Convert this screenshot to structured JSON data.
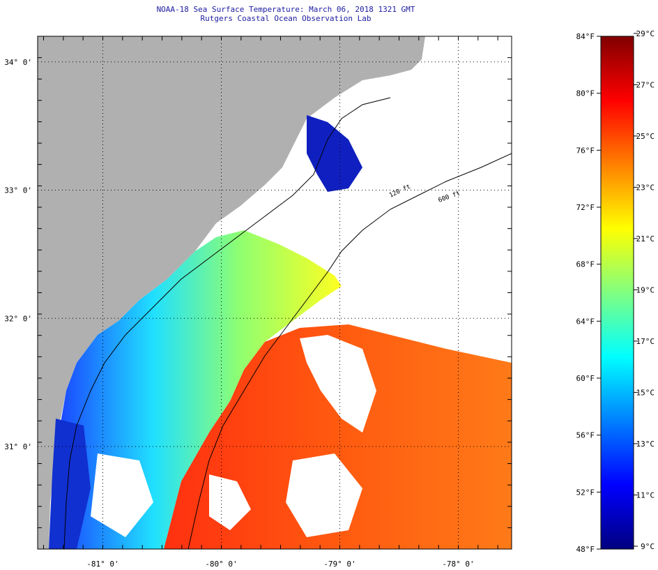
{
  "title": {
    "line1": "NOAA-18 Sea Surface Temperature:  March 06, 2018 1321 GMT",
    "line2": "Rutgers Coastal Ocean Observation Lab"
  },
  "map": {
    "lon_range": [
      -81.55,
      -77.55
    ],
    "lat_range": [
      30.2,
      34.2
    ],
    "lat_labels": [
      {
        "value": 34,
        "text": "34° 0'"
      },
      {
        "value": 33,
        "text": "33° 0'"
      },
      {
        "value": 32,
        "text": "32° 0'"
      },
      {
        "value": 31,
        "text": "31° 0'"
      }
    ],
    "lon_labels": [
      {
        "value": -81,
        "text": "-81° 0'"
      },
      {
        "value": -80,
        "text": "-80° 0'"
      },
      {
        "value": -79,
        "text": "-79° 0'"
      },
      {
        "value": -78,
        "text": "-78° 0'"
      }
    ],
    "contours": [
      {
        "label": "120 ft"
      },
      {
        "label": "600 ft"
      }
    ],
    "colors": {
      "land": "#b0b0b0",
      "cloud": "#ffffff"
    }
  },
  "colorbar": {
    "fahrenheit": [
      {
        "value": 84,
        "text": "84°F"
      },
      {
        "value": 80,
        "text": "80°F"
      },
      {
        "value": 76,
        "text": "76°F"
      },
      {
        "value": 72,
        "text": "72°F"
      },
      {
        "value": 68,
        "text": "68°F"
      },
      {
        "value": 64,
        "text": "64°F"
      },
      {
        "value": 60,
        "text": "60°F"
      },
      {
        "value": 56,
        "text": "56°F"
      },
      {
        "value": 52,
        "text": "52°F"
      },
      {
        "value": 48,
        "text": "48°F"
      }
    ],
    "celsius": [
      {
        "value": 29,
        "text": "29°C"
      },
      {
        "value": 27,
        "text": "27°C"
      },
      {
        "value": 25,
        "text": "25°C"
      },
      {
        "value": 23,
        "text": "23°C"
      },
      {
        "value": 21,
        "text": "21°C"
      },
      {
        "value": 19,
        "text": "19°C"
      },
      {
        "value": 17,
        "text": "17°C"
      },
      {
        "value": 15,
        "text": "15°C"
      },
      {
        "value": 13,
        "text": "13°C"
      },
      {
        "value": 11,
        "text": "11°C"
      },
      {
        "value": 9,
        "text": "9°C"
      }
    ],
    "f_range": [
      48,
      84
    ],
    "gradient": [
      "#000080",
      "#0000ff",
      "#0080ff",
      "#00ffff",
      "#80ff80",
      "#ffff00",
      "#ff8000",
      "#ff0000",
      "#800000"
    ]
  }
}
